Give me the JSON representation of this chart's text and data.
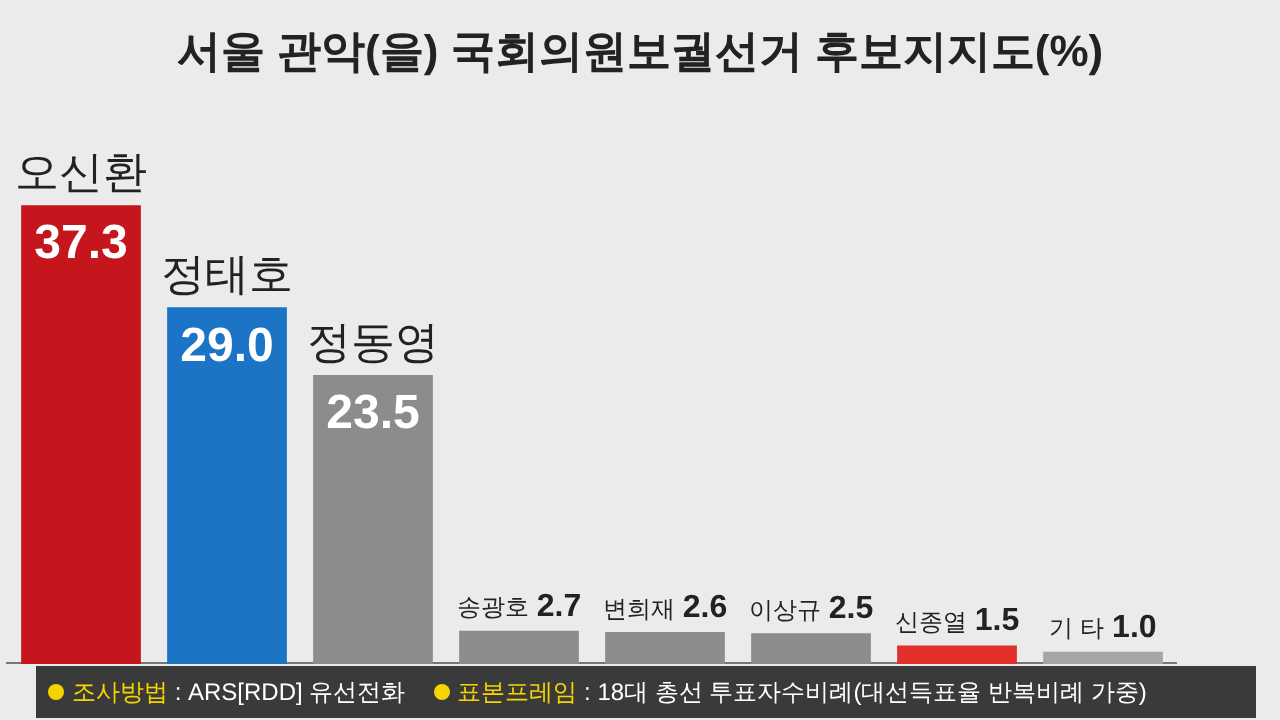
{
  "chart_data": {
    "type": "bar",
    "title": "서울 관악(을) 국회의원보궐선거 후보지지도(%)",
    "categories": [
      "오신환",
      "정태호",
      "정동영",
      "송광호",
      "변희재",
      "이상규",
      "신종열",
      "기 타"
    ],
    "values": [
      37.3,
      29.0,
      23.5,
      2.7,
      2.6,
      2.5,
      1.5,
      1.0
    ],
    "colors": [
      "#c4161c",
      "#1b74c5",
      "#8c8c8c",
      "#8c8c8c",
      "#8c8c8c",
      "#8c8c8c",
      "#e12f2a",
      "#a5a5a5"
    ],
    "value_labels": [
      "37.3",
      "29.0",
      "23.5",
      "2.7",
      "2.6",
      "2.5",
      "1.5",
      "1.0"
    ],
    "grid": false,
    "legend": false,
    "annotations": [
      "조사방법 : ARS[RDD] 유선전화",
      "표본프레임 : 18대 총선 투표자수비례(대선득표율 반복비례 가중)"
    ]
  }
}
